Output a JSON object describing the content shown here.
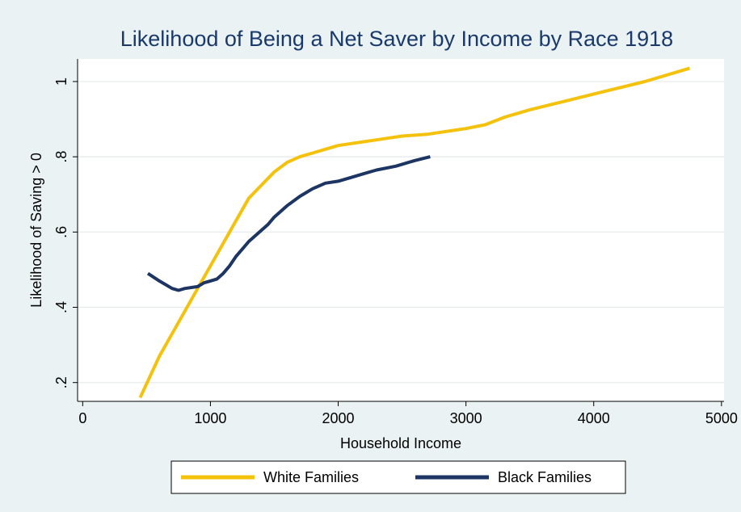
{
  "chart_data": {
    "type": "line",
    "title": "Likelihood of Being a Net Saver by Income by Race 1918",
    "xlabel": "Household Income",
    "ylabel": "Likelihood of Saving > 0",
    "xlim": [
      -40,
      5020
    ],
    "ylim": [
      0.15,
      1.06
    ],
    "xticks": [
      0,
      1000,
      2000,
      3000,
      4000,
      5000
    ],
    "xtick_labels": [
      "0",
      "1000",
      "2000",
      "3000",
      "4000",
      "5000"
    ],
    "yticks": [
      0.2,
      0.4,
      0.6,
      0.8,
      1.0
    ],
    "ytick_labels": [
      ".2",
      ".4",
      ".6",
      ".8",
      "1"
    ],
    "grid": true,
    "legend_position": "bottom",
    "series": [
      {
        "name": "White Families",
        "color": "#f4c20d",
        "x": [
          450,
          600,
          750,
          900,
          1000,
          1100,
          1200,
          1300,
          1400,
          1500,
          1600,
          1700,
          1800,
          1900,
          2000,
          2100,
          2200,
          2300,
          2400,
          2500,
          2700,
          2900,
          3000,
          3150,
          3300,
          3500,
          3800,
          4100,
          4400,
          4750
        ],
        "y": [
          0.16,
          0.27,
          0.36,
          0.45,
          0.51,
          0.57,
          0.63,
          0.69,
          0.725,
          0.76,
          0.785,
          0.8,
          0.81,
          0.82,
          0.83,
          0.835,
          0.84,
          0.845,
          0.85,
          0.855,
          0.86,
          0.87,
          0.875,
          0.885,
          0.905,
          0.925,
          0.95,
          0.975,
          1.0,
          1.035
        ]
      },
      {
        "name": "Black Families",
        "color": "#1d3563",
        "x": [
          510,
          600,
          700,
          750,
          800,
          900,
          950,
          1000,
          1050,
          1100,
          1150,
          1200,
          1250,
          1300,
          1350,
          1400,
          1450,
          1500,
          1600,
          1700,
          1800,
          1900,
          2000,
          2100,
          2200,
          2300,
          2450,
          2600,
          2720
        ],
        "y": [
          0.49,
          0.47,
          0.45,
          0.445,
          0.45,
          0.455,
          0.465,
          0.47,
          0.475,
          0.49,
          0.51,
          0.535,
          0.555,
          0.575,
          0.59,
          0.605,
          0.62,
          0.64,
          0.67,
          0.695,
          0.715,
          0.73,
          0.735,
          0.745,
          0.755,
          0.765,
          0.775,
          0.79,
          0.8
        ]
      }
    ]
  }
}
